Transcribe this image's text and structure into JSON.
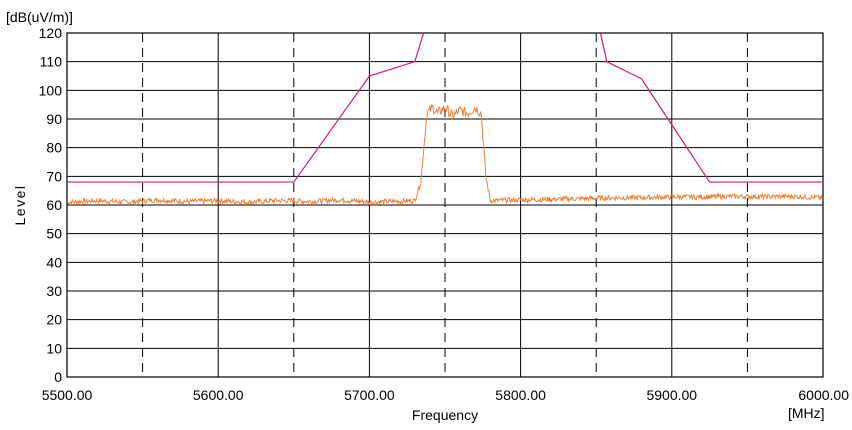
{
  "chart_data": {
    "type": "line",
    "title": "",
    "ylabel": "Level",
    "yunit": "[dB(uV/m)]",
    "xlabel": "Frequency",
    "xunit": "[MHz]",
    "xlim": [
      5500,
      6000
    ],
    "ylim": [
      0,
      120
    ],
    "grid": true,
    "x_ticks": [
      "5500.00",
      "5600.00",
      "5700.00",
      "5800.00",
      "5900.00",
      "6000.00"
    ],
    "y_ticks": [
      "0",
      "10",
      "20",
      "30",
      "40",
      "50",
      "60",
      "70",
      "80",
      "90",
      "100",
      "110",
      "120"
    ],
    "dashed_gridlines_x": [
      5550,
      5650,
      5750,
      5850,
      5950
    ],
    "series": [
      {
        "color": "#d6167a",
        "points": [
          [
            5500,
            68
          ],
          [
            5650,
            68
          ],
          [
            5700,
            105
          ],
          [
            5730,
            110
          ],
          [
            5737,
            122
          ],
          [
            5852,
            122
          ],
          [
            5857,
            110
          ],
          [
            5880,
            104
          ],
          [
            5925,
            68
          ],
          [
            6000,
            68
          ]
        ]
      },
      {
        "color": "#f07f35",
        "points": [
          [
            5500,
            61
          ],
          [
            5520,
            61.5
          ],
          [
            5540,
            61
          ],
          [
            5560,
            61.8
          ],
          [
            5580,
            61.2
          ],
          [
            5600,
            61.5
          ],
          [
            5620,
            61
          ],
          [
            5640,
            61.6
          ],
          [
            5660,
            61.2
          ],
          [
            5680,
            61.8
          ],
          [
            5700,
            61
          ],
          [
            5720,
            61.3
          ],
          [
            5730,
            61.5
          ],
          [
            5734,
            68
          ],
          [
            5738,
            92
          ],
          [
            5742,
            94
          ],
          [
            5745,
            92
          ],
          [
            5750,
            94
          ],
          [
            5755,
            91
          ],
          [
            5760,
            93
          ],
          [
            5765,
            92
          ],
          [
            5770,
            94
          ],
          [
            5774,
            92
          ],
          [
            5777,
            70
          ],
          [
            5780,
            61.5
          ],
          [
            5800,
            61.8
          ],
          [
            5820,
            62
          ],
          [
            5840,
            62.2
          ],
          [
            5860,
            62.5
          ],
          [
            5880,
            62.6
          ],
          [
            5900,
            62.8
          ],
          [
            5920,
            62.8
          ],
          [
            5940,
            63
          ],
          [
            5960,
            62.9
          ],
          [
            5980,
            63
          ],
          [
            6000,
            62.5
          ]
        ]
      }
    ]
  }
}
